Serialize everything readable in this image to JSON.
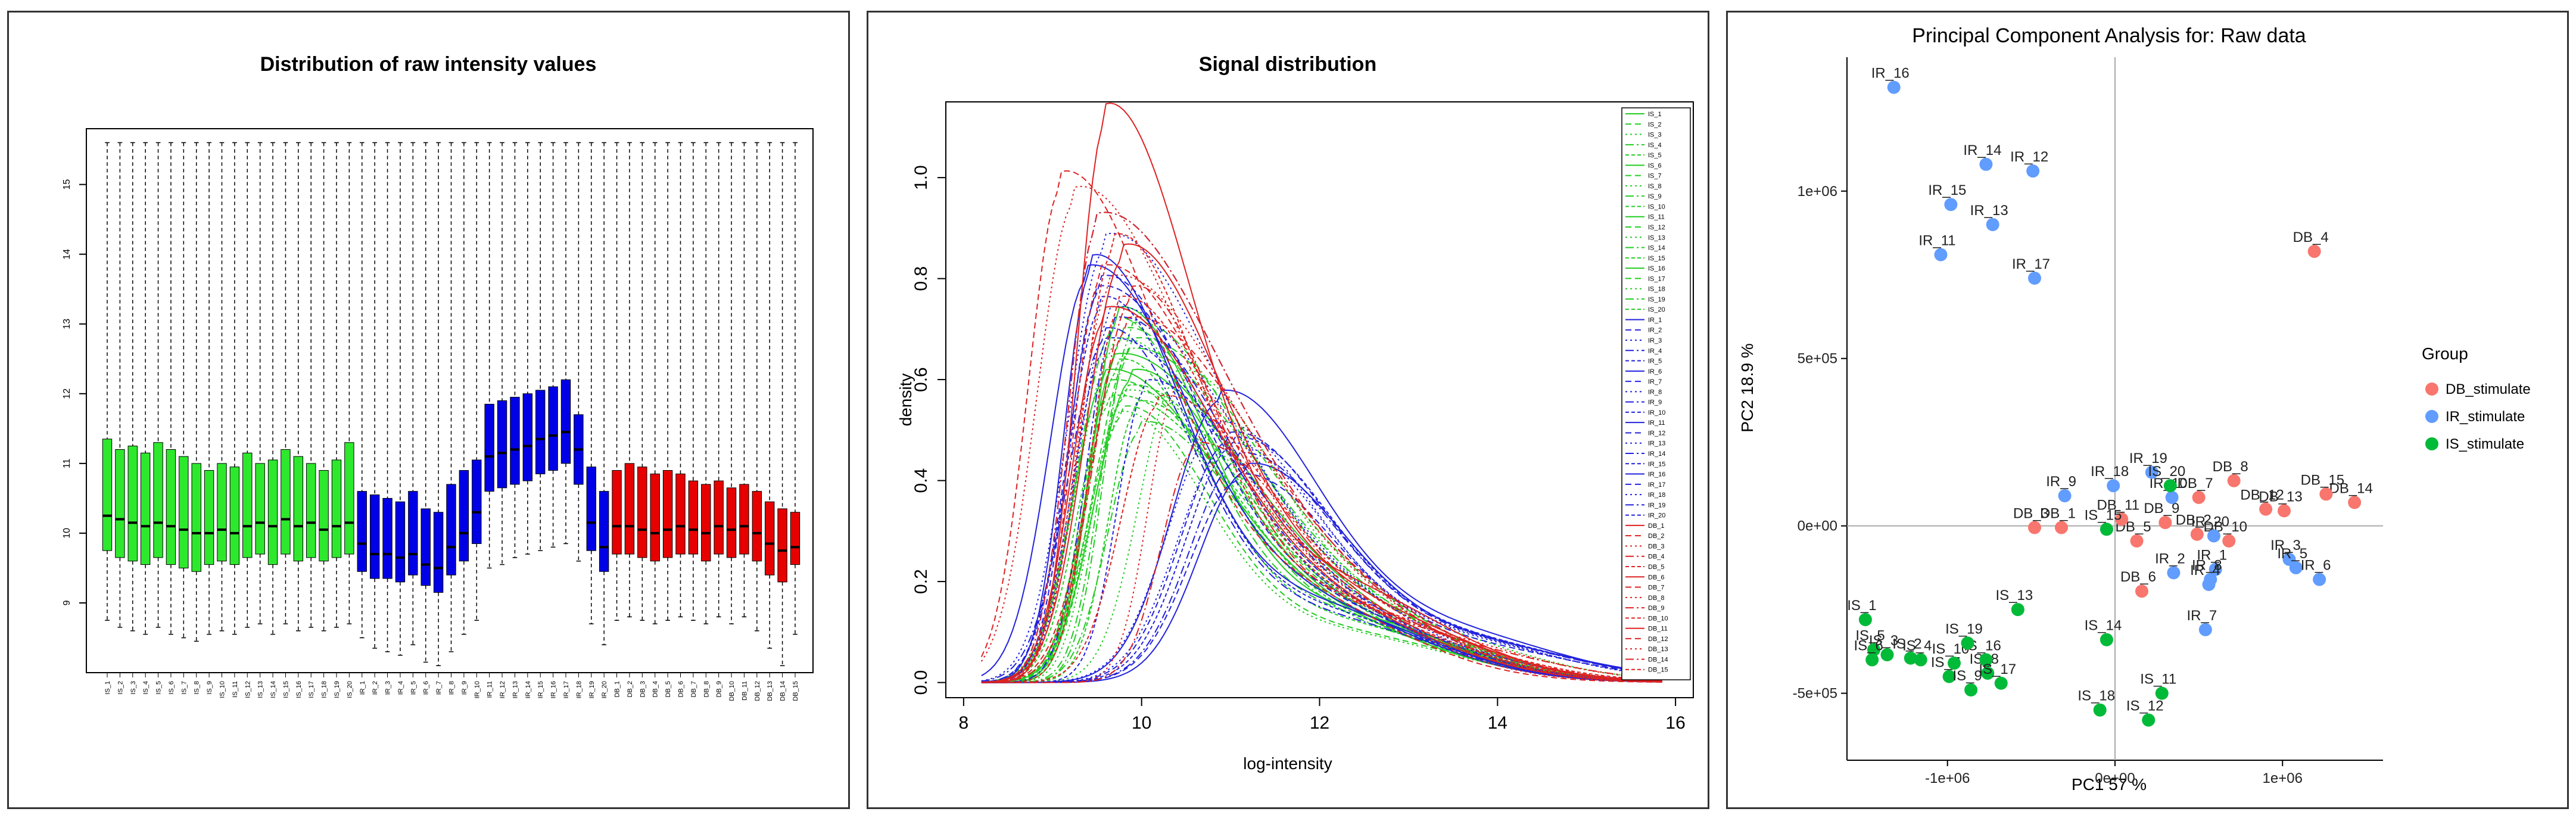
{
  "chart_data": [
    {
      "type": "box",
      "title": "Distribution of raw intensity values",
      "xlabel": "",
      "ylabel": "",
      "ylim": [
        8.0,
        15.8
      ],
      "yticks": [
        9,
        10,
        11,
        12,
        13,
        14,
        15
      ],
      "colors": {
        "IS": "#2ee82e",
        "IR": "#0000e6",
        "DB": "#e60000"
      },
      "groups": [
        {
          "name": "IS",
          "samples": [
            "IS_1",
            "IS_2",
            "IS_3",
            "IS_4",
            "IS_5",
            "IS_6",
            "IS_7",
            "IS_8",
            "IS_9",
            "IS_10",
            "IS_11",
            "IS_12",
            "IS_13",
            "IS_14",
            "IS_15",
            "IS_16",
            "IS_17",
            "IS_18",
            "IS_19",
            "IS_20"
          ],
          "medians": [
            10.25,
            10.2,
            10.15,
            10.1,
            10.15,
            10.1,
            10.05,
            10.0,
            10.0,
            10.05,
            10.0,
            10.1,
            10.15,
            10.1,
            10.2,
            10.1,
            10.15,
            10.05,
            10.1,
            10.15
          ],
          "q1": [
            9.75,
            9.65,
            9.6,
            9.55,
            9.65,
            9.55,
            9.5,
            9.45,
            9.55,
            9.6,
            9.55,
            9.65,
            9.7,
            9.55,
            9.7,
            9.6,
            9.65,
            9.6,
            9.65,
            9.7
          ],
          "q3": [
            11.35,
            11.2,
            11.25,
            11.15,
            11.3,
            11.2,
            11.1,
            11.0,
            10.9,
            11.0,
            10.95,
            11.15,
            11.0,
            11.05,
            11.2,
            11.1,
            11.0,
            10.9,
            11.05,
            11.3
          ],
          "lo": [
            8.75,
            8.65,
            8.6,
            8.55,
            8.65,
            8.55,
            8.5,
            8.45,
            8.55,
            8.6,
            8.55,
            8.65,
            8.7,
            8.55,
            8.7,
            8.6,
            8.65,
            8.6,
            8.65,
            8.7
          ]
        },
        {
          "name": "IR",
          "samples": [
            "IR_1",
            "IR_2",
            "IR_3",
            "IR_4",
            "IR_5",
            "IR_6",
            "IR_7",
            "IR_8",
            "IR_9",
            "IR_10",
            "IR_11",
            "IR_12",
            "IR_13",
            "IR_14",
            "IR_15",
            "IR_16",
            "IR_17",
            "IR_18",
            "IR_19",
            "IR_20"
          ],
          "medians": [
            9.85,
            9.7,
            9.7,
            9.65,
            9.7,
            9.55,
            9.5,
            9.8,
            10.0,
            10.3,
            11.1,
            11.15,
            11.2,
            11.25,
            11.35,
            11.4,
            11.45,
            11.2,
            10.15,
            9.8
          ],
          "q1": [
            9.45,
            9.35,
            9.35,
            9.3,
            9.4,
            9.25,
            9.15,
            9.4,
            9.6,
            9.85,
            10.6,
            10.65,
            10.7,
            10.75,
            10.85,
            10.9,
            11.0,
            10.7,
            9.75,
            9.45
          ],
          "q3": [
            10.6,
            10.55,
            10.5,
            10.45,
            10.6,
            10.35,
            10.3,
            10.7,
            10.9,
            11.05,
            11.85,
            11.9,
            11.95,
            12.0,
            12.05,
            12.1,
            12.2,
            11.7,
            10.95,
            10.6
          ],
          "lo": [
            8.5,
            8.35,
            8.3,
            8.25,
            8.4,
            8.15,
            8.1,
            8.3,
            8.55,
            8.75,
            9.5,
            9.55,
            9.65,
            9.7,
            9.75,
            9.8,
            9.85,
            9.6,
            8.7,
            8.4
          ]
        },
        {
          "name": "DB",
          "samples": [
            "DB_1",
            "DB_2",
            "DB_3",
            "DB_4",
            "DB_5",
            "DB_6",
            "DB_7",
            "DB_8",
            "DB_9",
            "DB_10",
            "DB_11",
            "DB_12",
            "DB_13",
            "DB_14",
            "DB_15"
          ],
          "medians": [
            10.1,
            10.1,
            10.05,
            10.0,
            10.05,
            10.1,
            10.05,
            10.0,
            10.1,
            10.05,
            10.1,
            10.0,
            9.85,
            9.75,
            9.8
          ],
          "q1": [
            9.7,
            9.7,
            9.65,
            9.6,
            9.65,
            9.7,
            9.7,
            9.6,
            9.7,
            9.65,
            9.7,
            9.6,
            9.4,
            9.3,
            9.55
          ],
          "q3": [
            10.9,
            11.0,
            10.95,
            10.85,
            10.9,
            10.85,
            10.75,
            10.7,
            10.75,
            10.65,
            10.7,
            10.6,
            10.45,
            10.35,
            10.3
          ],
          "lo": [
            8.75,
            8.8,
            8.75,
            8.7,
            8.75,
            8.8,
            8.75,
            8.7,
            8.8,
            8.7,
            8.8,
            8.6,
            8.35,
            8.1,
            8.55
          ]
        }
      ],
      "whisker_top": 15.6
    },
    {
      "type": "line",
      "title": "Signal distribution",
      "xlabel": "log-intensity",
      "ylabel": "density",
      "xlim": [
        7.8,
        16.2
      ],
      "ylim": [
        -0.03,
        1.15
      ],
      "xticks": [
        8,
        10,
        12,
        14,
        16
      ],
      "yticks": [
        0.0,
        0.2,
        0.4,
        0.6,
        0.8,
        1.0
      ],
      "legend": [
        "IS_1",
        "IS_2",
        "IS_3",
        "IS_4",
        "IS_5",
        "IS_6",
        "IS_7",
        "IS_8",
        "IS_9",
        "IS_10",
        "IS_11",
        "IS_12",
        "IS_13",
        "IS_14",
        "IS_15",
        "IS_16",
        "IS_17",
        "IS_18",
        "IS_19",
        "IS_20",
        "IR_1",
        "IR_2",
        "IR_3",
        "IR_4",
        "IR_5",
        "IR_6",
        "IR_7",
        "IR_8",
        "IR_9",
        "IR_10",
        "IR_11",
        "IR_12",
        "IR_13",
        "IR_14",
        "IR_15",
        "IR_16",
        "IR_17",
        "IR_18",
        "IR_19",
        "IR_20",
        "DB_1",
        "DB_2",
        "DB_3",
        "DB_4",
        "DB_5",
        "DB_6",
        "DB_7",
        "DB_8",
        "DB_9",
        "DB_10",
        "DB_11",
        "DB_12",
        "DB_13",
        "DB_14",
        "DB_15"
      ],
      "curves": {
        "IS": [
          [
            9.75,
            0.72
          ],
          [
            9.8,
            0.68
          ],
          [
            9.7,
            0.66
          ],
          [
            9.85,
            0.64
          ],
          [
            9.75,
            0.62
          ],
          [
            9.9,
            0.6
          ],
          [
            9.65,
            0.58
          ],
          [
            9.8,
            0.56
          ],
          [
            9.7,
            0.7
          ],
          [
            9.95,
            0.54
          ],
          [
            9.6,
            0.6
          ],
          [
            9.9,
            0.66
          ],
          [
            9.75,
            0.52
          ],
          [
            10.0,
            0.5
          ],
          [
            9.85,
            0.57
          ],
          [
            9.7,
            0.63
          ],
          [
            9.8,
            0.53
          ],
          [
            10.4,
            0.6
          ],
          [
            9.9,
            0.69
          ],
          [
            9.65,
            0.55
          ]
        ],
        "IR": [
          [
            9.45,
            0.82
          ],
          [
            9.55,
            0.78
          ],
          [
            9.6,
            0.86
          ],
          [
            9.5,
            0.9
          ],
          [
            9.55,
            0.74
          ],
          [
            9.4,
            0.8
          ],
          [
            9.5,
            0.76
          ],
          [
            9.65,
            0.72
          ],
          [
            9.6,
            0.68
          ],
          [
            10.05,
            0.58
          ],
          [
            10.9,
            0.56
          ],
          [
            11.0,
            0.48
          ],
          [
            10.95,
            0.46
          ],
          [
            11.1,
            0.44
          ],
          [
            11.05,
            0.47
          ],
          [
            11.2,
            0.42
          ],
          [
            11.1,
            0.4
          ],
          [
            10.85,
            0.5
          ],
          [
            9.7,
            0.7
          ],
          [
            9.6,
            0.66
          ]
        ],
        "DB": [
          [
            9.6,
            1.11
          ],
          [
            9.1,
            0.98
          ],
          [
            9.25,
            0.95
          ],
          [
            9.5,
            0.9
          ],
          [
            9.7,
            0.86
          ],
          [
            9.8,
            0.84
          ],
          [
            9.55,
            0.8
          ],
          [
            9.65,
            0.78
          ],
          [
            9.9,
            0.76
          ],
          [
            9.75,
            0.74
          ],
          [
            9.6,
            0.72
          ],
          [
            9.85,
            0.7
          ],
          [
            10.4,
            0.58
          ],
          [
            10.6,
            0.46
          ],
          [
            10.2,
            0.55
          ]
        ]
      }
    },
    {
      "type": "scatter",
      "title": "Principal Component Analysis for:  Raw data",
      "xlabel": "PC1 57 %",
      "ylabel": "PC2 18.9 %",
      "xlim": [
        -1600000,
        1600000
      ],
      "ylim": [
        -700000,
        1400000
      ],
      "xticks": [
        -1000000,
        0,
        1000000
      ],
      "xtick_labels": [
        "-1e+06",
        "0e+00",
        "1e+06"
      ],
      "yticks": [
        -500000,
        0,
        500000,
        1000000
      ],
      "ytick_labels": [
        "-5e+05",
        "0e+00",
        "5e+05",
        "1e+06"
      ],
      "legend_title": "Group",
      "series": [
        {
          "name": "DB_stimulate",
          "color": "#f8766d",
          "points": [
            {
              "label": "DB_1",
              "x": -320000,
              "y": -5000
            },
            {
              "label": "DB_2",
              "x": 490000,
              "y": -25000
            },
            {
              "label": "DB_3",
              "x": -480000,
              "y": -5000
            },
            {
              "label": "DB_4",
              "x": 1190000,
              "y": 820000
            },
            {
              "label": "DB_5",
              "x": 130000,
              "y": -45000
            },
            {
              "label": "DB_6",
              "x": 160000,
              "y": -195000
            },
            {
              "label": "DB_7",
              "x": 500000,
              "y": 85000
            },
            {
              "label": "DB_8",
              "x": 710000,
              "y": 135000
            },
            {
              "label": "DB_9",
              "x": 300000,
              "y": 10000
            },
            {
              "label": "DB_10",
              "x": 680000,
              "y": -45000
            },
            {
              "label": "DB_11",
              "x": 40000,
              "y": 20000
            },
            {
              "label": "DB_12",
              "x": 900000,
              "y": 50000
            },
            {
              "label": "DB_13",
              "x": 1010000,
              "y": 45000
            },
            {
              "label": "DB_14",
              "x": 1430000,
              "y": 70000
            },
            {
              "label": "DB_15",
              "x": 1260000,
              "y": 95000
            }
          ]
        },
        {
          "name": "IR_stimulate",
          "color": "#619cff",
          "points": [
            {
              "label": "IR_1",
              "x": 600000,
              "y": -130000
            },
            {
              "label": "IR_2",
              "x": 350000,
              "y": -140000
            },
            {
              "label": "IR_3",
              "x": 1040000,
              "y": -100000
            },
            {
              "label": "IR_4",
              "x": 560000,
              "y": -175000
            },
            {
              "label": "IR_5",
              "x": 1080000,
              "y": -125000
            },
            {
              "label": "IR_6",
              "x": 1220000,
              "y": -160000
            },
            {
              "label": "IR_7",
              "x": 540000,
              "y": -310000
            },
            {
              "label": "IR_8",
              "x": 570000,
              "y": -160000
            },
            {
              "label": "IR_9",
              "x": -300000,
              "y": 90000
            },
            {
              "label": "IR_10",
              "x": 340000,
              "y": 85000
            },
            {
              "label": "IR_11",
              "x": -1040000,
              "y": 810000
            },
            {
              "label": "IR_12",
              "x": -490000,
              "y": 1060000
            },
            {
              "label": "IR_13",
              "x": -730000,
              "y": 900000
            },
            {
              "label": "IR_14",
              "x": -770000,
              "y": 1080000
            },
            {
              "label": "IR_15",
              "x": -980000,
              "y": 960000
            },
            {
              "label": "IR_16",
              "x": -1320000,
              "y": 1310000
            },
            {
              "label": "IR_17",
              "x": -480000,
              "y": 740000
            },
            {
              "label": "IR_18",
              "x": -10000,
              "y": 120000
            },
            {
              "label": "IR_19",
              "x": 220000,
              "y": 160000
            },
            {
              "label": "IR_20",
              "x": 590000,
              "y": -30000
            }
          ]
        },
        {
          "name": "IS_stimulate",
          "color": "#00ba38",
          "points": [
            {
              "label": "IS_1",
              "x": -1490000,
              "y": -280000
            },
            {
              "label": "IS_2",
              "x": -1220000,
              "y": -395000
            },
            {
              "label": "IS_3",
              "x": -1360000,
              "y": -385000
            },
            {
              "label": "IS_4",
              "x": -1160000,
              "y": -400000
            },
            {
              "label": "IS_5",
              "x": -1440000,
              "y": -370000
            },
            {
              "label": "IS_6",
              "x": -1450000,
              "y": -400000
            },
            {
              "label": "IS_7",
              "x": -990000,
              "y": -450000
            },
            {
              "label": "IS_8",
              "x": -760000,
              "y": -440000
            },
            {
              "label": "IS_9",
              "x": -860000,
              "y": -490000
            },
            {
              "label": "IS_10",
              "x": -960000,
              "y": -410000
            },
            {
              "label": "IS_11",
              "x": 280000,
              "y": -500000
            },
            {
              "label": "IS_12",
              "x": 200000,
              "y": -580000
            },
            {
              "label": "IS_13",
              "x": -580000,
              "y": -250000
            },
            {
              "label": "IS_14",
              "x": -50000,
              "y": -340000
            },
            {
              "label": "IS_15",
              "x": -50000,
              "y": -10000
            },
            {
              "label": "IS_16",
              "x": -770000,
              "y": -400000
            },
            {
              "label": "IS_17",
              "x": -680000,
              "y": -470000
            },
            {
              "label": "IS_18",
              "x": -90000,
              "y": -550000
            },
            {
              "label": "IS_19",
              "x": -880000,
              "y": -350000
            },
            {
              "label": "IS_20",
              "x": 330000,
              "y": 120000
            }
          ]
        }
      ]
    }
  ]
}
